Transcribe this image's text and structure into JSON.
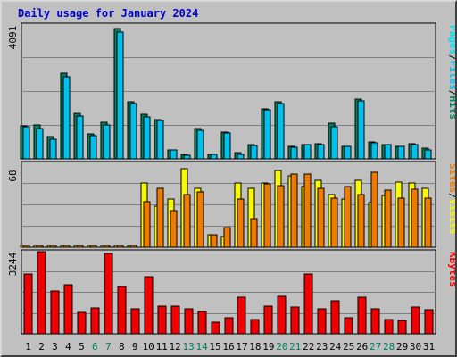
{
  "title": "Daily usage for January 2024",
  "colors": {
    "hits": "#00805c",
    "files": "#00c0f0",
    "pages": "#00e0f0",
    "visits": "#f8f800",
    "sites": "#f07a00",
    "kbytes": "#f00000",
    "weekend_label": "#007f5c",
    "weekday_label": "#000000",
    "plot_bg": "#c0c0c0",
    "grid": "#808080"
  },
  "chart_data": [
    {
      "type": "bar",
      "ymax_label": "4091",
      "ylim": [
        0,
        4091
      ],
      "legend": [
        {
          "text": "Pages",
          "color_key": "pages"
        },
        {
          "text": "Files",
          "color_key": "files"
        },
        {
          "text": "Hits",
          "color_key": "hits"
        }
      ],
      "series": [
        {
          "name": "Hits",
          "color_key": "hits",
          "values": [
            1020,
            1060,
            700,
            2660,
            1420,
            780,
            1140,
            4040,
            1760,
            1390,
            1230,
            290,
            130,
            930,
            150,
            830,
            180,
            430,
            1560,
            1760,
            400,
            450,
            480,
            1100,
            390,
            1850,
            520,
            440,
            400,
            480,
            330
          ]
        },
        {
          "name": "Files",
          "color_key": "files",
          "values": [
            1000,
            950,
            620,
            2550,
            1340,
            730,
            1050,
            3920,
            1720,
            1300,
            1190,
            290,
            120,
            880,
            130,
            800,
            150,
            420,
            1520,
            1720,
            370,
            430,
            440,
            1000,
            380,
            1800,
            500,
            430,
            390,
            430,
            290
          ]
        }
      ]
    },
    {
      "type": "bar",
      "ymax_label": "68",
      "ylim": [
        0,
        68
      ],
      "legend": [
        {
          "text": "Sites",
          "color_key": "sites"
        },
        {
          "text": "Visits",
          "color_key": "visits"
        }
      ],
      "series": [
        {
          "name": "Visits",
          "color_key": "visits",
          "values": [
            1,
            1,
            1,
            1,
            1,
            1,
            1,
            1,
            1,
            52,
            33,
            39,
            64,
            48,
            10,
            9,
            52,
            48,
            52,
            62,
            58,
            49,
            54,
            43,
            39,
            54,
            36,
            42,
            53,
            52,
            48
          ]
        },
        {
          "name": "Sites",
          "color_key": "sites",
          "values": [
            1,
            1,
            1,
            1,
            1,
            1,
            1,
            1,
            1,
            37,
            48,
            30,
            43,
            45,
            10,
            16,
            39,
            23,
            51,
            50,
            59,
            59,
            48,
            40,
            49,
            43,
            61,
            46,
            40,
            47,
            40
          ]
        }
      ]
    },
    {
      "type": "bar",
      "ymax_label": "3244",
      "ylim": [
        0,
        3244
      ],
      "legend": [
        {
          "text": "KBytes",
          "color_key": "kbytes"
        }
      ],
      "series": [
        {
          "name": "KBytes",
          "color_key": "kbytes",
          "values": [
            2350,
            3244,
            1700,
            1950,
            850,
            1020,
            3180,
            1860,
            970,
            2270,
            1110,
            1100,
            1000,
            880,
            460,
            620,
            1440,
            580,
            1100,
            1480,
            1060,
            2380,
            990,
            1320,
            620,
            1430,
            980,
            560,
            540,
            1050,
            950
          ]
        }
      ]
    }
  ],
  "x_labels": [
    "1",
    "2",
    "3",
    "4",
    "5",
    "6",
    "7",
    "8",
    "9",
    "10",
    "11",
    "12",
    "13",
    "14",
    "15",
    "16",
    "17",
    "18",
    "19",
    "20",
    "21",
    "22",
    "23",
    "24",
    "25",
    "26",
    "27",
    "28",
    "29",
    "30",
    "31"
  ],
  "weekend_days": [
    "6",
    "7",
    "13",
    "14",
    "20",
    "21",
    "27",
    "28"
  ]
}
